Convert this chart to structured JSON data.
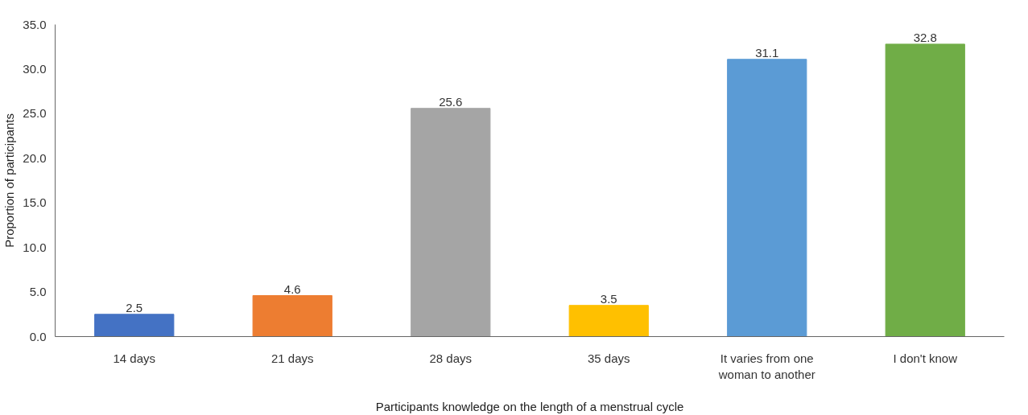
{
  "chart_data": {
    "type": "bar",
    "xlabel": "Participants knowledge on the length of a menstrual cycle",
    "ylabel": "Proportion of participants",
    "categories": [
      "14 days",
      "21 days",
      "28 days",
      "35 days",
      "It varies from one woman to another",
      "I don't know"
    ],
    "values": [
      2.5,
      4.6,
      25.6,
      3.5,
      31.1,
      32.8
    ],
    "colors": [
      "#4472c4",
      "#ed7d31",
      "#a5a5a5",
      "#ffc000",
      "#5b9bd5",
      "#70ad47"
    ],
    "value_labels": [
      "2.5",
      "4.6",
      "25.6",
      "3.5",
      "31.1",
      "32.8"
    ],
    "ylim": [
      0,
      35
    ],
    "yticks": [
      {
        "value": 0,
        "label": "0.0"
      },
      {
        "value": 5,
        "label": "5.0"
      },
      {
        "value": 10,
        "label": "10.0"
      },
      {
        "value": 15,
        "label": "15.0"
      },
      {
        "value": 20,
        "label": "20.0"
      },
      {
        "value": 25,
        "label": "25.0"
      },
      {
        "value": 30,
        "label": "30.0"
      },
      {
        "value": 35,
        "label": "35.0"
      }
    ],
    "grid": false
  }
}
